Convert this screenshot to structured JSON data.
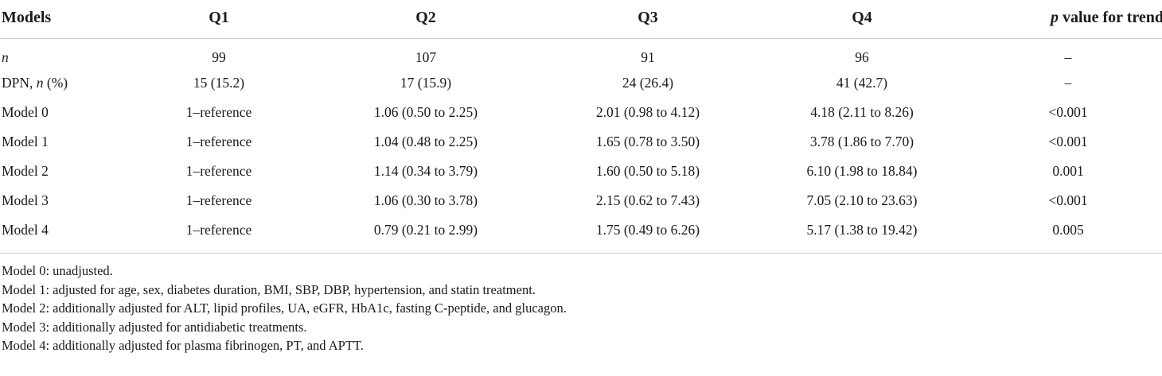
{
  "table": {
    "headers": {
      "models": "Models",
      "q1": "Q1",
      "q2": "Q2",
      "q3": "Q3",
      "q4": "Q4",
      "p_italic": "p",
      "p_rest": " value for trend"
    },
    "rows": [
      {
        "label_italic": "n",
        "label_rest": "",
        "q1": "99",
        "q2": "107",
        "q3": "91",
        "q4": "96",
        "p": "–"
      },
      {
        "label_prefix": "DPN, ",
        "label_italic": "n",
        "label_rest": " (%)",
        "q1": "15 (15.2)",
        "q2": "17 (15.9)",
        "q3": "24 (26.4)",
        "q4": "41 (42.7)",
        "p": "–"
      },
      {
        "label": "Model 0",
        "q1": "1–reference",
        "q2": "1.06 (0.50 to 2.25)",
        "q3": "2.01 (0.98 to 4.12)",
        "q4": "4.18 (2.11 to 8.26)",
        "p": "<0.001"
      },
      {
        "label": "Model 1",
        "q1": "1–reference",
        "q2": "1.04 (0.48 to 2.25)",
        "q3": "1.65 (0.78 to 3.50)",
        "q4": "3.78 (1.86 to 7.70)",
        "p": "<0.001"
      },
      {
        "label": "Model 2",
        "q1": "1–reference",
        "q2": "1.14 (0.34 to 3.79)",
        "q3": "1.60 (0.50 to 5.18)",
        "q4": "6.10 (1.98 to 18.84)",
        "p": "0.001"
      },
      {
        "label": "Model 3",
        "q1": "1–reference",
        "q2": "1.06 (0.30 to 3.78)",
        "q3": "2.15 (0.62 to 7.43)",
        "q4": "7.05 (2.10 to 23.63)",
        "p": "<0.001"
      },
      {
        "label": "Model 4",
        "q1": "1–reference",
        "q2": "0.79 (0.21 to 2.99)",
        "q3": "1.75 (0.49 to 6.26)",
        "q4": "5.17 (1.38 to 19.42)",
        "p": "0.005"
      }
    ]
  },
  "notes": [
    "Model 0: unadjusted.",
    "Model 1: adjusted for age, sex, diabetes duration, BMI, SBP, DBP, hypertension, and statin treatment.",
    "Model 2: additionally adjusted for ALT, lipid profiles, UA, eGFR, HbA1c, fasting C-peptide, and glucagon.",
    "Model 3: additionally adjusted for antidiabetic treatments.",
    "Model 4: additionally adjusted for plasma fibrinogen, PT, and APTT."
  ]
}
